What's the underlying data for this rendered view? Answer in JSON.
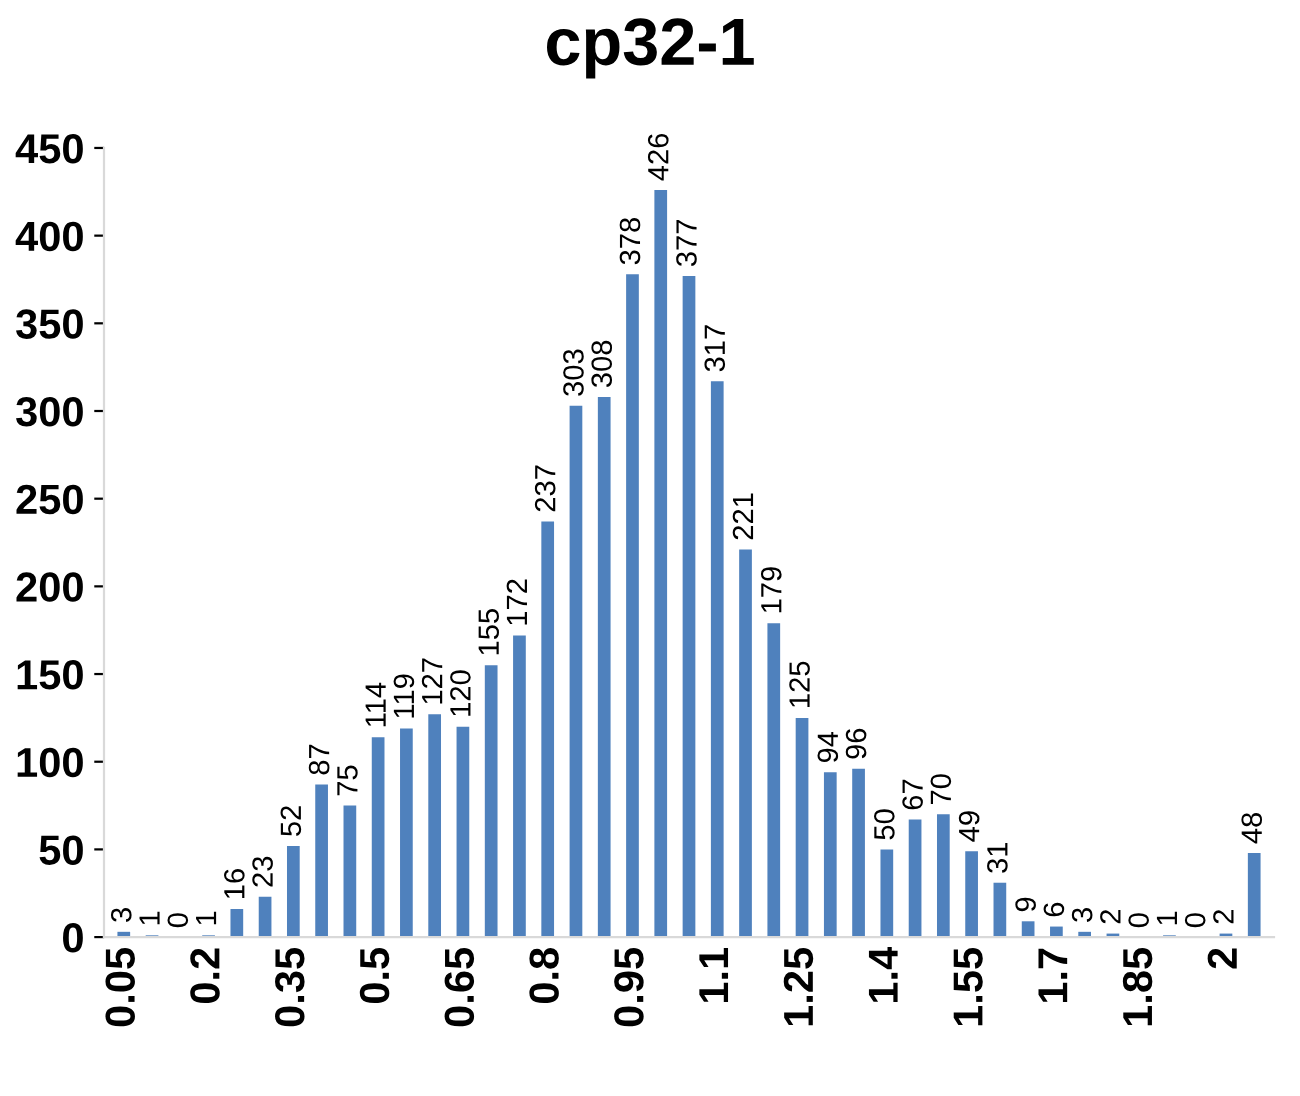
{
  "chart_data": {
    "type": "bar",
    "title": "cp32-1",
    "categories": [
      "0.05",
      null,
      null,
      "0.2",
      null,
      null,
      "0.35",
      null,
      null,
      "0.5",
      null,
      null,
      "0.65",
      null,
      null,
      "0.8",
      null,
      null,
      "0.95",
      null,
      null,
      "1.1",
      null,
      null,
      "1.25",
      null,
      null,
      "1.4",
      null,
      null,
      "1.55",
      null,
      null,
      "1.7",
      null,
      null,
      "1.85",
      null,
      null,
      "2",
      null
    ],
    "values": [
      3,
      1,
      0,
      1,
      16,
      23,
      52,
      87,
      75,
      114,
      119,
      127,
      120,
      155,
      172,
      237,
      303,
      308,
      378,
      426,
      377,
      317,
      221,
      179,
      125,
      94,
      96,
      50,
      67,
      70,
      49,
      31,
      9,
      6,
      3,
      2,
      0,
      1,
      0,
      2,
      48
    ],
    "color": "#4f81bd",
    "ylim": [
      0,
      450
    ],
    "yticks": [
      0,
      50,
      100,
      150,
      200,
      250,
      300,
      350,
      400,
      450
    ],
    "grid": false,
    "data_labels": true
  }
}
